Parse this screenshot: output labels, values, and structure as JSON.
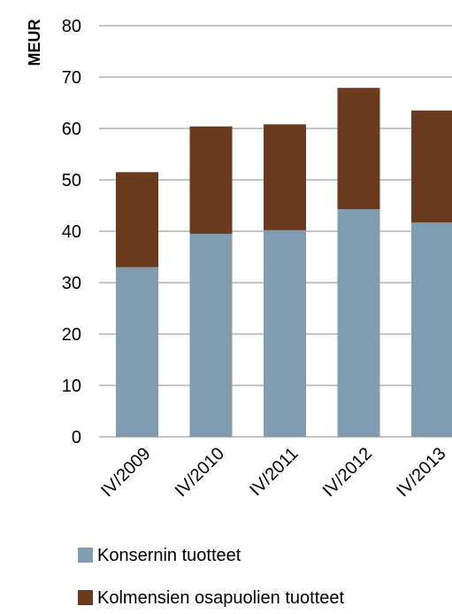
{
  "chart_data": {
    "type": "bar",
    "stacked": true,
    "ylabel": "MEUR",
    "xlabel": "",
    "ylim": [
      0,
      80
    ],
    "yticks": [
      0,
      10,
      20,
      30,
      40,
      50,
      60,
      70,
      80
    ],
    "grid": true,
    "legend_position": "bottom",
    "categories": [
      "IV/2009",
      "IV/2010",
      "IV/2011",
      "IV/2012",
      "IV/2013"
    ],
    "series": [
      {
        "name": "Konsernin tuotteet",
        "color": "#7f9cb0",
        "values": [
          33,
          39.5,
          40.2,
          44.3,
          41.7
        ]
      },
      {
        "name": "Kolmensien osapuolien tuotteet",
        "color": "#6b3a1e",
        "values": [
          18.5,
          20.9,
          20.6,
          23.6,
          21.8
        ]
      }
    ]
  }
}
